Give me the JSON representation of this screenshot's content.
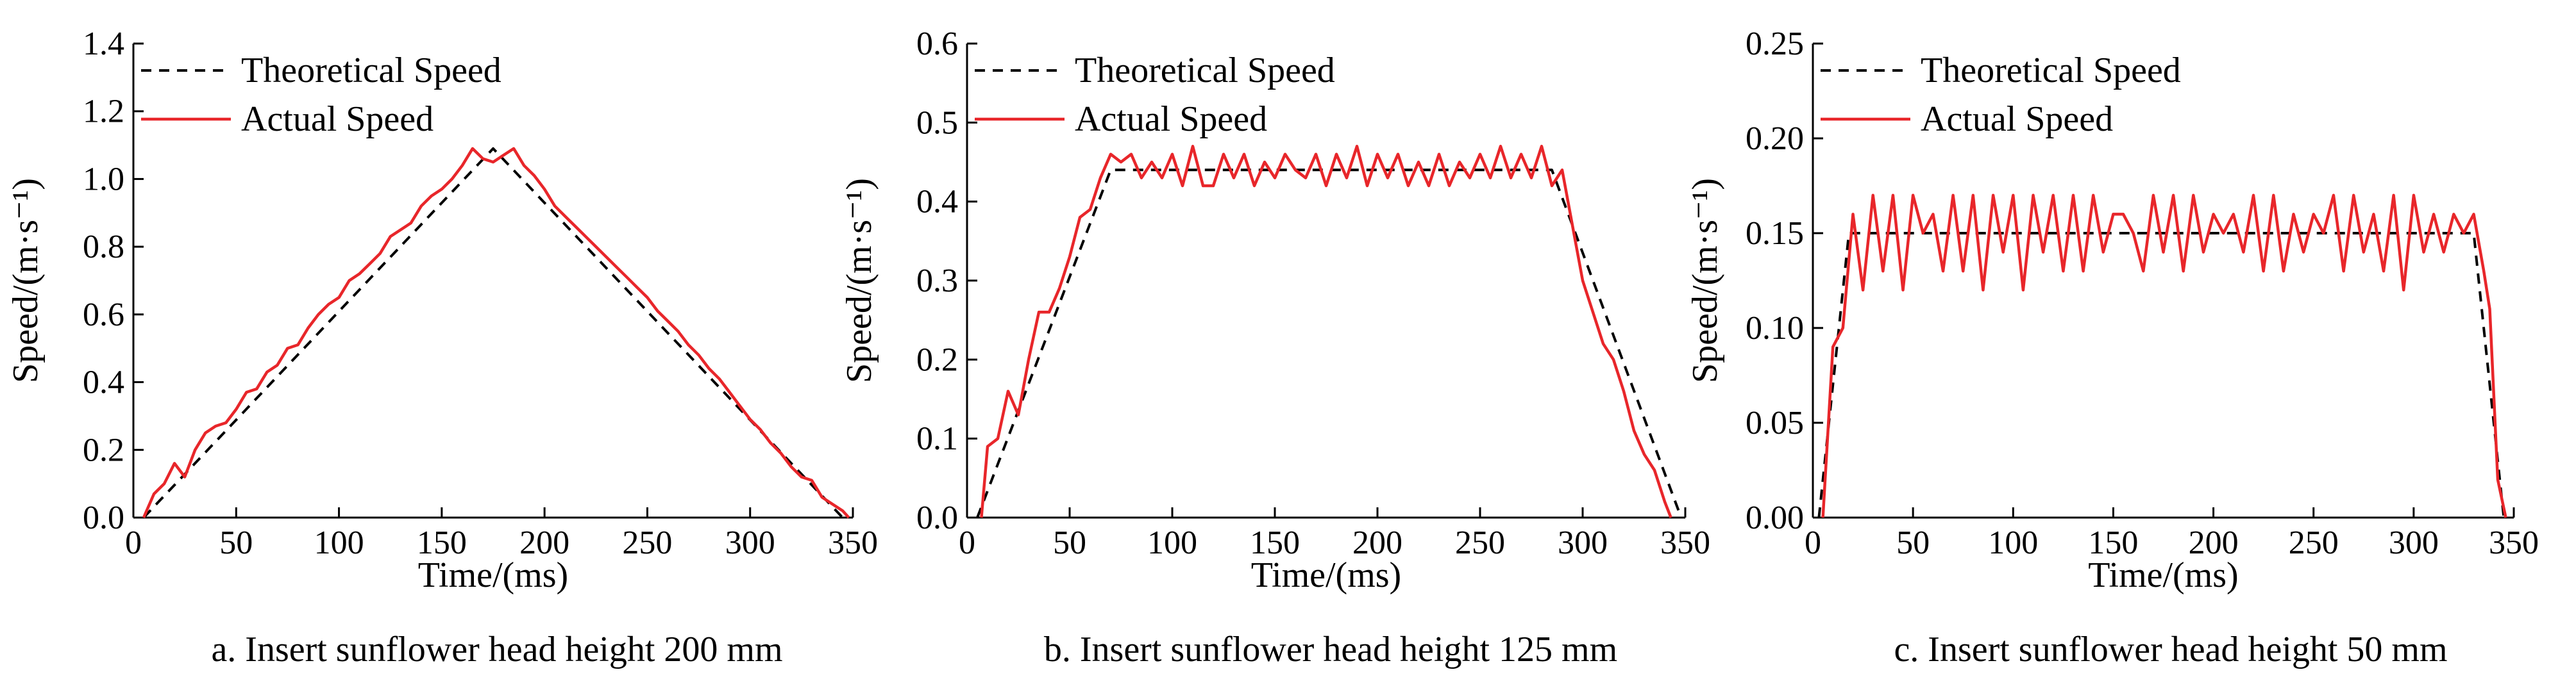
{
  "chart_data": [
    {
      "type": "line",
      "caption": "a. Insert sunflower head height 200 mm",
      "xlabel": "Time/(ms)",
      "ylabel": "Speed/(m·s⁻¹)",
      "xlim": [
        0,
        350
      ],
      "ylim": [
        0.0,
        1.4
      ],
      "xticks": [
        0,
        50,
        100,
        150,
        200,
        250,
        300,
        350
      ],
      "yticks": [
        0.0,
        0.2,
        0.4,
        0.6,
        0.8,
        1.0,
        1.2,
        1.4
      ],
      "xtick_labels": [
        "0",
        "50",
        "100",
        "150",
        "200",
        "250",
        "300",
        "350"
      ],
      "ytick_labels": [
        "0.0",
        "0.2",
        "0.4",
        "0.6",
        "0.8",
        "1.0",
        "1.2",
        "1.4"
      ],
      "legend": [
        "Theoretical Speed",
        "Actual Speed"
      ],
      "series": [
        {
          "name": "Theoretical Speed",
          "style": "dashed",
          "color": "#000000",
          "x": [
            5,
            175,
            345
          ],
          "y": [
            0.0,
            1.09,
            0.0
          ]
        },
        {
          "name": "Actual Speed",
          "style": "solid",
          "color": "#e8262a",
          "x": [
            5,
            10,
            15,
            20,
            25,
            30,
            35,
            40,
            45,
            50,
            55,
            60,
            65,
            70,
            75,
            80,
            85,
            90,
            95,
            100,
            105,
            110,
            115,
            120,
            125,
            130,
            135,
            140,
            145,
            150,
            155,
            160,
            165,
            170,
            175,
            180,
            185,
            190,
            195,
            200,
            205,
            210,
            215,
            220,
            225,
            230,
            235,
            240,
            245,
            250,
            255,
            260,
            265,
            270,
            275,
            280,
            285,
            290,
            295,
            300,
            305,
            310,
            315,
            320,
            325,
            330,
            335,
            340,
            345,
            348
          ],
          "y": [
            0.0,
            0.07,
            0.1,
            0.16,
            0.12,
            0.2,
            0.25,
            0.27,
            0.28,
            0.32,
            0.37,
            0.38,
            0.43,
            0.45,
            0.5,
            0.51,
            0.56,
            0.6,
            0.63,
            0.65,
            0.7,
            0.72,
            0.75,
            0.78,
            0.83,
            0.85,
            0.87,
            0.92,
            0.95,
            0.97,
            1.0,
            1.04,
            1.09,
            1.06,
            1.05,
            1.07,
            1.09,
            1.04,
            1.01,
            0.97,
            0.92,
            0.89,
            0.86,
            0.83,
            0.8,
            0.77,
            0.74,
            0.71,
            0.68,
            0.65,
            0.61,
            0.58,
            0.55,
            0.51,
            0.48,
            0.44,
            0.41,
            0.37,
            0.33,
            0.29,
            0.26,
            0.22,
            0.19,
            0.15,
            0.12,
            0.11,
            0.06,
            0.04,
            0.02,
            0.0
          ]
        }
      ]
    },
    {
      "type": "line",
      "caption": "b. Insert sunflower head height 125 mm",
      "xlabel": "Time/(ms)",
      "ylabel": "Speed/(m·s⁻¹)",
      "xlim": [
        0,
        350
      ],
      "ylim": [
        0.0,
        0.6
      ],
      "xticks": [
        0,
        50,
        100,
        150,
        200,
        250,
        300,
        350
      ],
      "yticks": [
        0.0,
        0.1,
        0.2,
        0.3,
        0.4,
        0.5,
        0.6
      ],
      "xtick_labels": [
        "0",
        "50",
        "100",
        "150",
        "200",
        "250",
        "300",
        "350"
      ],
      "ytick_labels": [
        "0.0",
        "0.1",
        "0.2",
        "0.3",
        "0.4",
        "0.5",
        "0.6"
      ],
      "legend": [
        "Theoretical Speed",
        "Actual Speed"
      ],
      "series": [
        {
          "name": "Theoretical Speed",
          "style": "dashed",
          "color": "#000000",
          "x": [
            5,
            70,
            285,
            348
          ],
          "y": [
            0.0,
            0.44,
            0.44,
            0.0
          ]
        },
        {
          "name": "Actual Speed",
          "style": "solid",
          "color": "#e8262a",
          "x": [
            7,
            10,
            15,
            20,
            25,
            30,
            35,
            40,
            45,
            50,
            55,
            60,
            65,
            70,
            75,
            80,
            85,
            90,
            95,
            100,
            105,
            110,
            115,
            120,
            125,
            130,
            135,
            140,
            145,
            150,
            155,
            160,
            165,
            170,
            175,
            180,
            185,
            190,
            195,
            200,
            205,
            210,
            215,
            220,
            225,
            230,
            235,
            240,
            245,
            250,
            255,
            260,
            265,
            270,
            275,
            280,
            285,
            290,
            295,
            300,
            305,
            310,
            315,
            320,
            325,
            330,
            335,
            340,
            343
          ],
          "y": [
            0.0,
            0.09,
            0.1,
            0.16,
            0.13,
            0.2,
            0.26,
            0.26,
            0.29,
            0.33,
            0.38,
            0.39,
            0.43,
            0.46,
            0.45,
            0.46,
            0.43,
            0.45,
            0.43,
            0.46,
            0.42,
            0.47,
            0.42,
            0.42,
            0.46,
            0.43,
            0.46,
            0.42,
            0.45,
            0.43,
            0.46,
            0.44,
            0.43,
            0.46,
            0.42,
            0.46,
            0.43,
            0.47,
            0.42,
            0.46,
            0.43,
            0.46,
            0.42,
            0.45,
            0.42,
            0.46,
            0.42,
            0.45,
            0.43,
            0.46,
            0.43,
            0.47,
            0.43,
            0.46,
            0.43,
            0.47,
            0.42,
            0.44,
            0.37,
            0.3,
            0.26,
            0.22,
            0.2,
            0.16,
            0.11,
            0.08,
            0.06,
            0.02,
            0.0
          ]
        }
      ]
    },
    {
      "type": "line",
      "caption": "c. Insert sunflower head height 50 mm",
      "xlabel": "Time/(ms)",
      "ylabel": "Speed/(m·s⁻¹)",
      "xlim": [
        0,
        350
      ],
      "ylim": [
        0.0,
        0.25
      ],
      "xticks": [
        0,
        50,
        100,
        150,
        200,
        250,
        300,
        350
      ],
      "yticks": [
        0.0,
        0.05,
        0.1,
        0.15,
        0.2,
        0.25
      ],
      "xtick_labels": [
        "0",
        "50",
        "100",
        "150",
        "200",
        "250",
        "300",
        "350"
      ],
      "ytick_labels": [
        "0.00",
        "0.05",
        "0.10",
        "0.15",
        "0.20",
        "0.25"
      ],
      "legend": [
        "Theoretical Speed",
        "Actual Speed"
      ],
      "series": [
        {
          "name": "Theoretical Speed",
          "style": "dashed",
          "color": "#000000",
          "x": [
            3,
            18,
            330,
            345
          ],
          "y": [
            0.0,
            0.15,
            0.15,
            0.0
          ]
        },
        {
          "name": "Actual Speed",
          "style": "solid",
          "color": "#e8262a",
          "x": [
            5,
            10,
            15,
            20,
            25,
            30,
            35,
            40,
            45,
            50,
            55,
            60,
            65,
            70,
            75,
            80,
            85,
            90,
            95,
            100,
            105,
            110,
            115,
            120,
            125,
            130,
            135,
            140,
            145,
            150,
            155,
            160,
            165,
            170,
            175,
            180,
            185,
            190,
            195,
            200,
            205,
            210,
            215,
            220,
            225,
            230,
            235,
            240,
            245,
            250,
            255,
            260,
            265,
            270,
            275,
            280,
            285,
            290,
            295,
            300,
            305,
            310,
            315,
            320,
            325,
            330,
            335,
            338,
            342,
            346
          ],
          "y": [
            0.0,
            0.09,
            0.1,
            0.16,
            0.12,
            0.17,
            0.13,
            0.17,
            0.12,
            0.17,
            0.15,
            0.16,
            0.13,
            0.17,
            0.13,
            0.17,
            0.12,
            0.17,
            0.14,
            0.17,
            0.12,
            0.17,
            0.14,
            0.17,
            0.13,
            0.17,
            0.13,
            0.17,
            0.14,
            0.16,
            0.16,
            0.15,
            0.13,
            0.17,
            0.14,
            0.17,
            0.13,
            0.17,
            0.14,
            0.16,
            0.15,
            0.16,
            0.14,
            0.17,
            0.13,
            0.17,
            0.13,
            0.16,
            0.14,
            0.16,
            0.15,
            0.17,
            0.13,
            0.17,
            0.14,
            0.16,
            0.13,
            0.17,
            0.12,
            0.17,
            0.14,
            0.16,
            0.14,
            0.16,
            0.15,
            0.16,
            0.13,
            0.11,
            0.02,
            0.0
          ]
        }
      ]
    }
  ]
}
